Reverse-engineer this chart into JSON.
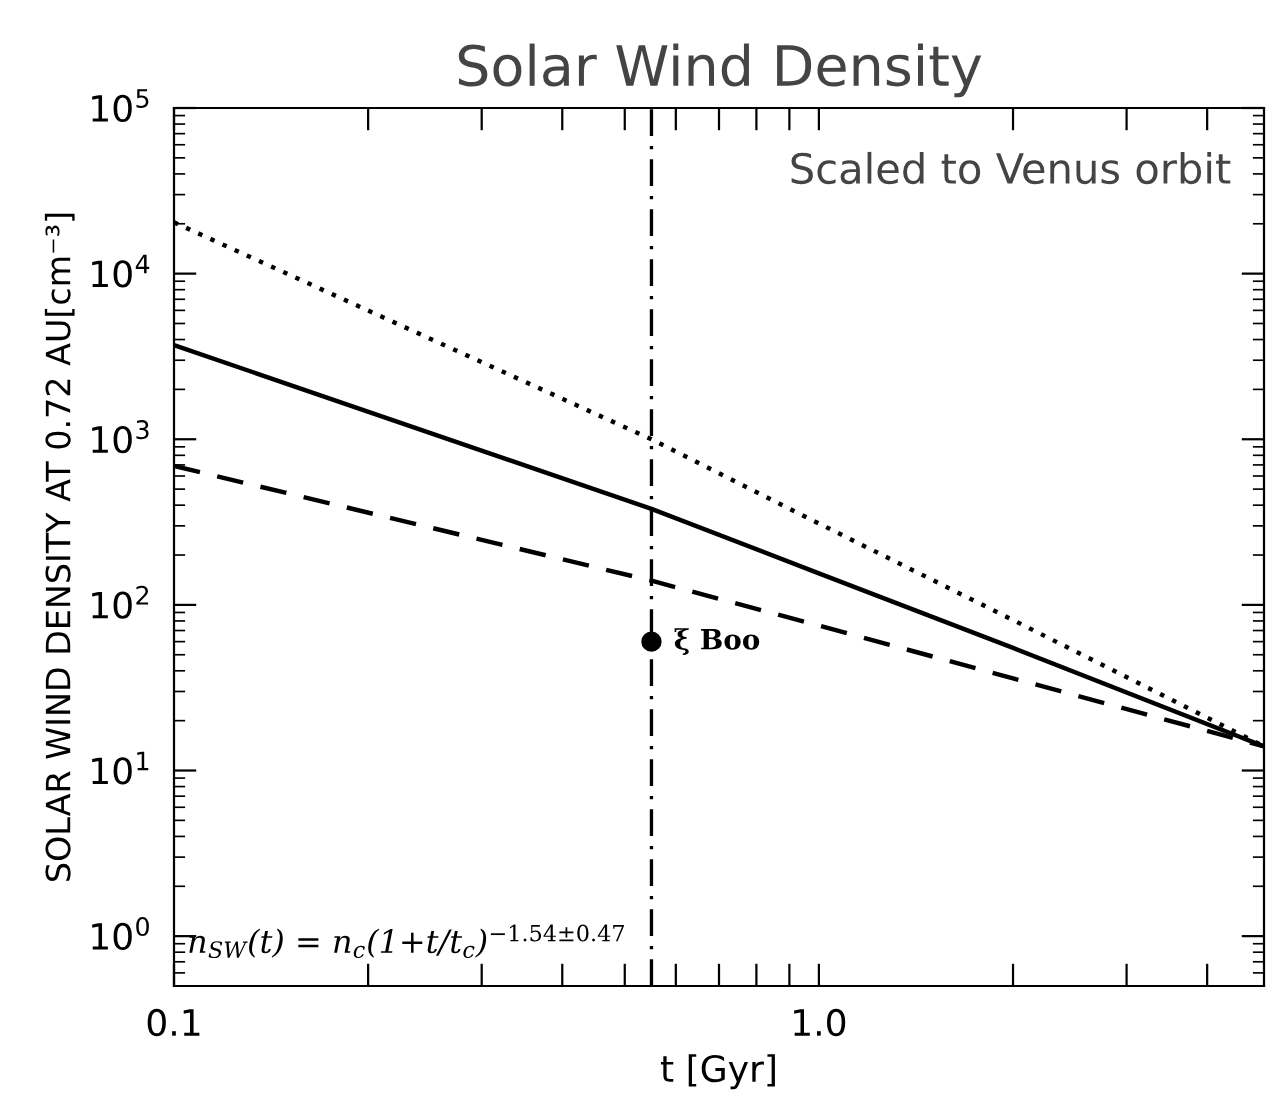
{
  "chart_data": {
    "type": "line",
    "title": "Solar Wind Density",
    "xlabel": "t [Gyr]",
    "ylabel": "SOLAR WIND DENSITY AT 0.72 AU[cm⁻³]",
    "log": "xy",
    "grid": false,
    "legend": false,
    "marker": "none",
    "xlim": [
      0.1,
      4.9
    ],
    "ylim": [
      0.5,
      100000
    ],
    "xticks": [
      {
        "value": 0.1,
        "label": "0.1"
      },
      {
        "value": 0.2,
        "label": null
      },
      {
        "value": 0.3,
        "label": null
      },
      {
        "value": 0.4,
        "label": null
      },
      {
        "value": 0.5,
        "label": null
      },
      {
        "value": 0.6,
        "label": null
      },
      {
        "value": 0.7,
        "label": null
      },
      {
        "value": 0.8,
        "label": null
      },
      {
        "value": 0.9,
        "label": null
      },
      {
        "value": 1,
        "label": "1.0"
      },
      {
        "value": 2,
        "label": null
      },
      {
        "value": 3,
        "label": null
      },
      {
        "value": 4,
        "label": null
      }
    ],
    "yticks": [
      {
        "value": 1,
        "label": "10$^{0}$"
      },
      {
        "value": 10,
        "label": "10$^{1}$"
      },
      {
        "value": 100,
        "label": "10$^{2}$"
      },
      {
        "value": 1000,
        "label": "10$^{3}$"
      },
      {
        "value": 10000,
        "label": "10$^{4}$"
      },
      {
        "value": 100000,
        "label": "10$^{5}$"
      }
    ],
    "series": [
      {
        "color": "#000000",
        "line_style": "solid",
        "x": [
          0.1,
          0.55,
          1,
          2,
          4.9
        ],
        "values": [
          3700,
          380,
          155,
          55,
          14
        ]
      },
      {
        "color": "#000000",
        "line_style": "dotted",
        "x": [
          0.1,
          0.55,
          1,
          2,
          4.9
        ],
        "values": [
          20400,
          1000,
          310,
          81,
          14
        ]
      },
      {
        "color": "#000000",
        "line_style": "dashed",
        "x": [
          0.1,
          0.55,
          1,
          2,
          4.9
        ],
        "values": [
          690,
          140,
          75,
          36,
          14
        ]
      },
      {
        "type": "scatter",
        "marker": "circle",
        "color": "#000000",
        "x": [
          0.55
        ],
        "values": [
          60
        ]
      }
    ],
    "ref_lines": [
      {
        "axis": "x",
        "value": 0.55,
        "line_style": "dashdot",
        "color": "#000000"
      }
    ],
    "annotations": [
      {
        "text": "ξ Boo",
        "x": 0.55,
        "y": 60
      },
      "Scaled to Venus orbit",
      "n$_{SW}$(t) = n$_{c}$(1+t/t$_{c}$)$^{−1.54±0.47}$"
    ]
  }
}
